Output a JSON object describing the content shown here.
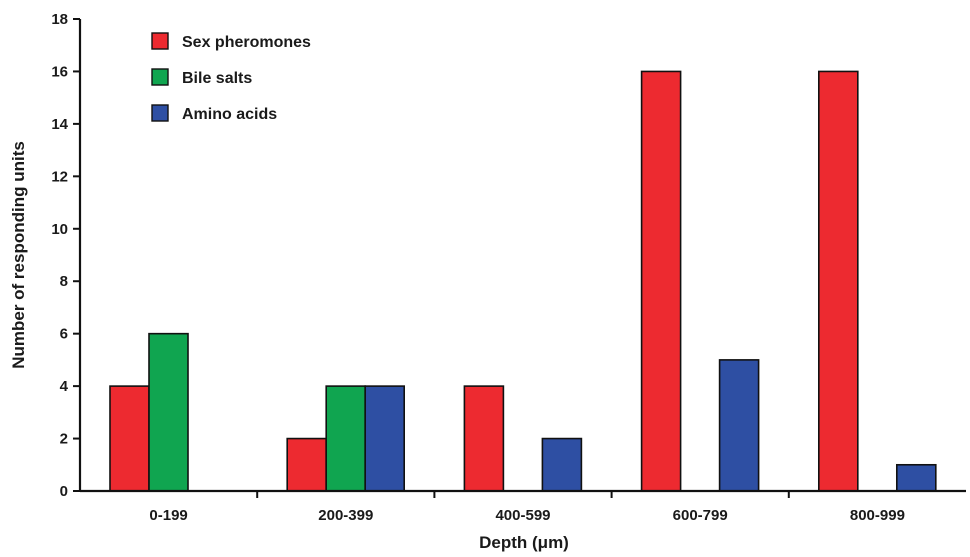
{
  "chart_data": {
    "type": "bar",
    "xlabel": "Depth (μm)",
    "ylabel": "Number of responding units",
    "categories": [
      "0-199",
      "200-399",
      "400-599",
      "600-799",
      "800-999"
    ],
    "ylim": [
      0,
      18
    ],
    "yticks": [
      0,
      2,
      4,
      6,
      8,
      10,
      12,
      14,
      16,
      18
    ],
    "grid": false,
    "legend_position": "top-left",
    "series": [
      {
        "name": "Sex pheromones",
        "color": "#ed2a30",
        "values": [
          4,
          2,
          4,
          16,
          16
        ]
      },
      {
        "name": "Bile salts",
        "color": "#10a550",
        "values": [
          6,
          4,
          0,
          0,
          0
        ]
      },
      {
        "name": "Amino acids",
        "color": "#2e4fa3",
        "values": [
          0,
          4,
          2,
          5,
          1
        ]
      }
    ]
  }
}
